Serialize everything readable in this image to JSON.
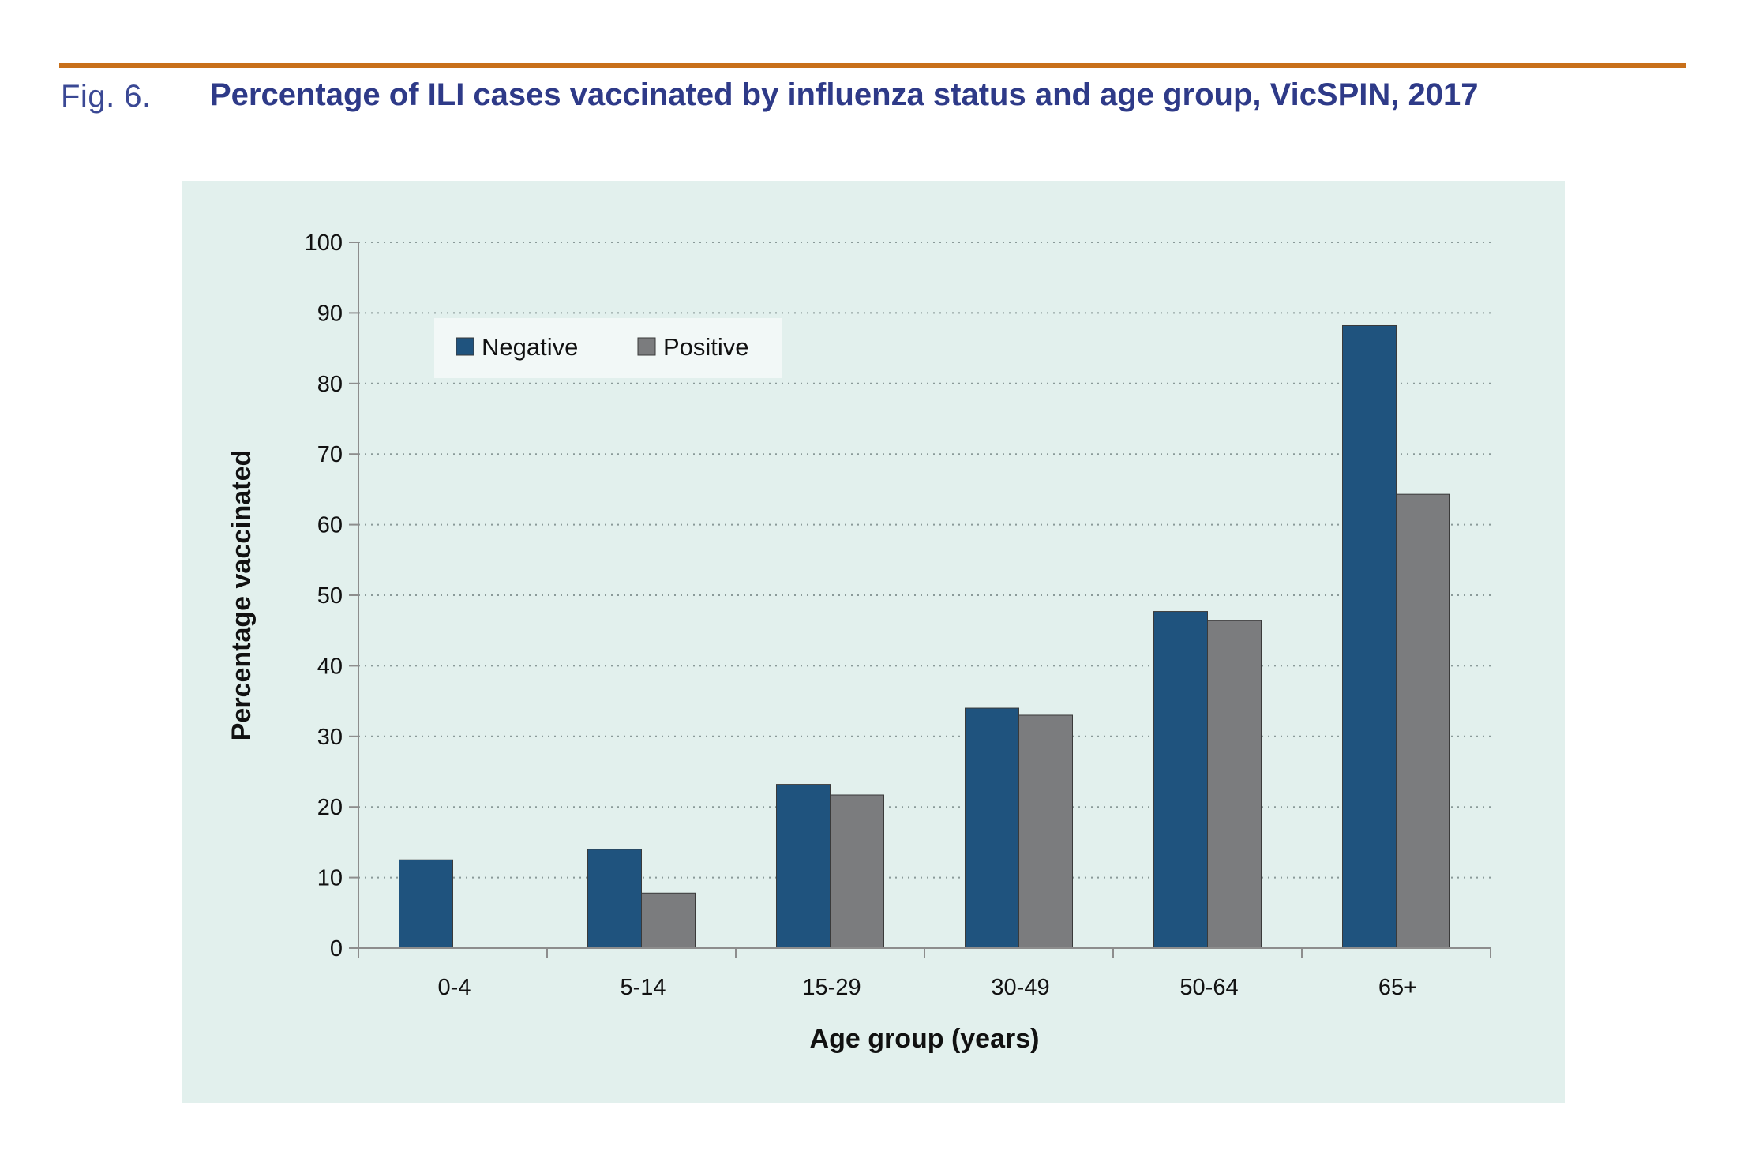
{
  "figure": {
    "label": "Fig. 6.",
    "title": "Percentage of ILI cases vaccinated by influenza status and age group, VicSPIN, 2017"
  },
  "colors": {
    "rule": "#c8701a",
    "title": "#2e3a88",
    "panel": "#e2f0ed",
    "negative": "#1f537e",
    "positive": "#7b7c7e"
  },
  "chart_data": {
    "type": "bar",
    "title": "Percentage of ILI cases vaccinated by influenza status and age group, VicSPIN, 2017",
    "xlabel": "Age group (years)",
    "ylabel": "Percentage vaccinated",
    "categories": [
      "0-4",
      "5-14",
      "15-29",
      "30-49",
      "50-64",
      "65+"
    ],
    "series": [
      {
        "name": "Negative",
        "values": [
          12.5,
          14,
          23.2,
          34,
          47.7,
          88.2
        ]
      },
      {
        "name": "Positive",
        "values": [
          0,
          7.8,
          21.7,
          33,
          46.4,
          64.3
        ]
      }
    ],
    "ylim": [
      0,
      100
    ],
    "yticks": [
      0,
      10,
      20,
      30,
      40,
      50,
      60,
      70,
      80,
      90,
      100
    ],
    "yticklabels": [
      "0",
      "10",
      "20",
      "30",
      "40",
      "50",
      "60",
      "70",
      "80",
      "90",
      "100"
    ],
    "grid": true,
    "legend_position": "top-left"
  }
}
